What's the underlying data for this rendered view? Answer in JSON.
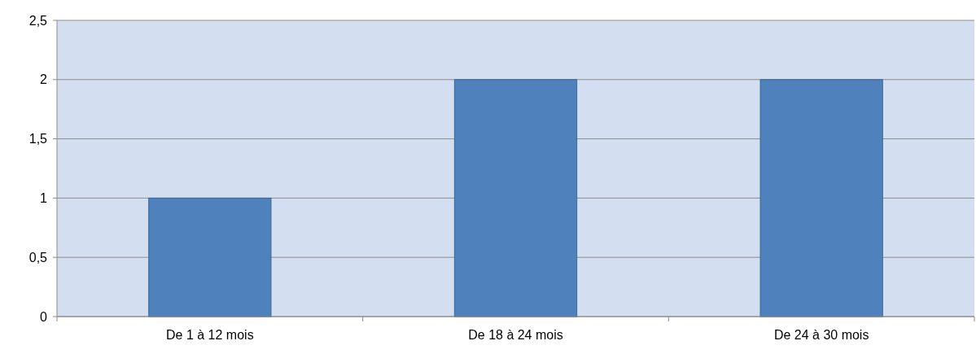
{
  "chart_data": {
    "type": "bar",
    "categories": [
      "De 1 à 12 mois",
      "De 18 à 24 mois",
      "De 24 à 30 mois"
    ],
    "values": [
      1,
      2,
      2
    ],
    "color": "#4f81bd",
    "ylim": [
      0,
      2.5
    ],
    "yticks": [
      0,
      {
        "value": 0.5,
        "label": "0,5"
      },
      1,
      {
        "value": 1.5,
        "label": "1,5"
      },
      2,
      {
        "value": 2.5,
        "label": "2,5"
      }
    ],
    "grid": "y"
  }
}
